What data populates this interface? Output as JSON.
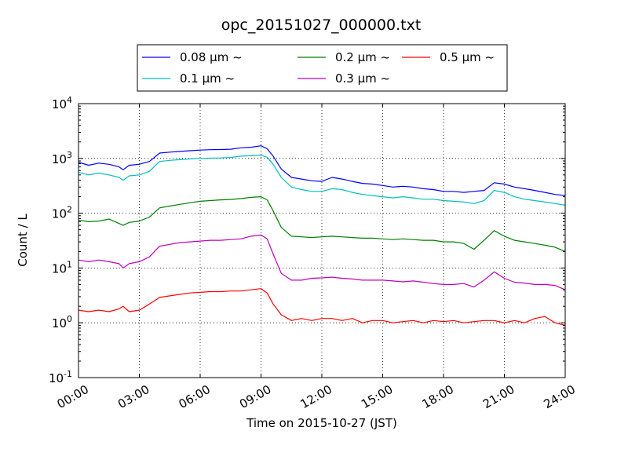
{
  "chart_data": {
    "type": "line",
    "title": "opc_20151027_000000.txt",
    "xlabel": "Time on 2015-10-27 (JST)",
    "ylabel": "Count / L",
    "x_unit": "hours",
    "xlim": [
      0,
      24
    ],
    "y_scale": "log",
    "ylim": [
      0.1,
      10000
    ],
    "grid": "dotted",
    "legend_position": "above plot, centered, 3 columns",
    "x_ticks": [
      {
        "value": 0,
        "label": "00:00"
      },
      {
        "value": 3,
        "label": "03:00"
      },
      {
        "value": 6,
        "label": "06:00"
      },
      {
        "value": 9,
        "label": "09:00"
      },
      {
        "value": 12,
        "label": "12:00"
      },
      {
        "value": 15,
        "label": "15:00"
      },
      {
        "value": 18,
        "label": "18:00"
      },
      {
        "value": 21,
        "label": "21:00"
      },
      {
        "value": 24,
        "label": "24:00"
      }
    ],
    "y_ticks": [
      {
        "value": 0.1,
        "base": "10",
        "exp": "-1"
      },
      {
        "value": 1,
        "base": "10",
        "exp": "0"
      },
      {
        "value": 10,
        "base": "10",
        "exp": "1"
      },
      {
        "value": 100,
        "base": "10",
        "exp": "2"
      },
      {
        "value": 1000,
        "base": "10",
        "exp": "3"
      },
      {
        "value": 10000,
        "base": "10",
        "exp": "4"
      }
    ],
    "series": [
      {
        "name": "0.08 μm ~",
        "color": "#0000ff",
        "x": [
          0,
          0.5,
          1,
          1.5,
          2,
          2.2,
          2.5,
          3,
          3.5,
          4,
          4.5,
          5,
          5.5,
          6,
          6.5,
          7,
          7.5,
          8,
          8.5,
          9,
          9.3,
          9.6,
          10,
          10.5,
          11,
          11.5,
          12,
          12.5,
          13,
          13.5,
          14,
          14.5,
          15,
          15.5,
          16,
          16.5,
          17,
          17.5,
          18,
          18.5,
          19,
          19.5,
          20,
          20.5,
          21,
          21.5,
          22,
          22.5,
          23,
          23.5,
          24
        ],
        "y": [
          850,
          750,
          820,
          780,
          700,
          620,
          750,
          780,
          880,
          1250,
          1300,
          1340,
          1380,
          1420,
          1440,
          1450,
          1470,
          1560,
          1600,
          1700,
          1500,
          1100,
          640,
          450,
          420,
          390,
          380,
          450,
          420,
          380,
          350,
          340,
          320,
          300,
          310,
          300,
          280,
          270,
          250,
          250,
          240,
          250,
          260,
          360,
          340,
          300,
          280,
          260,
          240,
          220,
          210
        ]
      },
      {
        "name": "0.1 μm ~",
        "color": "#00bfbf",
        "x": [
          0,
          0.5,
          1,
          1.5,
          2,
          2.2,
          2.5,
          3,
          3.5,
          4,
          4.5,
          5,
          5.5,
          6,
          6.5,
          7,
          7.5,
          8,
          8.5,
          9,
          9.3,
          9.6,
          10,
          10.5,
          11,
          11.5,
          12,
          12.5,
          13,
          13.5,
          14,
          14.5,
          15,
          15.5,
          16,
          16.5,
          17,
          17.5,
          18,
          18.5,
          19,
          19.5,
          20,
          20.5,
          21,
          21.5,
          22,
          22.5,
          23,
          23.5,
          24
        ],
        "y": [
          560,
          500,
          540,
          500,
          450,
          400,
          480,
          500,
          580,
          880,
          920,
          950,
          980,
          1000,
          1010,
          1020,
          1040,
          1100,
          1120,
          1150,
          1050,
          780,
          450,
          300,
          270,
          250,
          250,
          280,
          270,
          240,
          220,
          210,
          200,
          190,
          200,
          190,
          180,
          180,
          170,
          165,
          160,
          150,
          170,
          260,
          240,
          200,
          180,
          170,
          160,
          150,
          140
        ]
      },
      {
        "name": "0.2 μm ~",
        "color": "#008000",
        "x": [
          0,
          0.5,
          1,
          1.5,
          2,
          2.2,
          2.5,
          3,
          3.5,
          4,
          4.5,
          5,
          5.5,
          6,
          6.5,
          7,
          7.5,
          8,
          8.5,
          9,
          9.3,
          9.6,
          10,
          10.5,
          11,
          11.5,
          12,
          12.5,
          13,
          13.5,
          14,
          14.5,
          15,
          15.5,
          16,
          16.5,
          17,
          17.5,
          18,
          18.5,
          19,
          19.5,
          20,
          20.5,
          21,
          21.5,
          22,
          22.5,
          23,
          23.5,
          24
        ],
        "y": [
          75,
          70,
          72,
          78,
          65,
          60,
          68,
          72,
          85,
          125,
          135,
          145,
          155,
          165,
          170,
          175,
          178,
          185,
          195,
          200,
          175,
          110,
          55,
          38,
          37,
          36,
          37,
          38,
          37,
          36,
          35,
          35,
          34,
          33,
          34,
          33,
          32,
          32,
          30,
          30,
          28,
          22,
          32,
          48,
          38,
          32,
          30,
          28,
          26,
          24,
          20
        ]
      },
      {
        "name": "0.3 μm ~",
        "color": "#bf00bf",
        "x": [
          0,
          0.5,
          1,
          1.5,
          2,
          2.2,
          2.5,
          3,
          3.5,
          4,
          4.5,
          5,
          5.5,
          6,
          6.5,
          7,
          7.5,
          8,
          8.5,
          9,
          9.3,
          9.6,
          10,
          10.5,
          11,
          11.5,
          12,
          12.5,
          13,
          13.5,
          14,
          14.5,
          15,
          15.5,
          16,
          16.5,
          17,
          17.5,
          18,
          18.5,
          19,
          19.5,
          20,
          20.5,
          21,
          21.5,
          22,
          22.5,
          23,
          23.5,
          24
        ],
        "y": [
          14,
          13,
          14,
          13,
          12,
          10,
          12,
          13,
          16,
          25,
          27,
          29,
          30,
          31,
          32,
          32,
          33,
          34,
          38,
          40,
          34,
          18,
          8,
          6,
          6,
          6.5,
          6.6,
          6.8,
          6.5,
          6.3,
          6,
          6,
          6,
          5.8,
          5.6,
          5.8,
          5.5,
          5.2,
          5,
          5,
          5.2,
          4.5,
          6,
          8.5,
          6.5,
          5.5,
          5.3,
          5,
          5,
          4.8,
          4
        ]
      },
      {
        "name": "0.5 μm ~",
        "color": "#ff0000",
        "x": [
          0,
          0.5,
          1,
          1.5,
          2,
          2.2,
          2.5,
          3,
          3.5,
          4,
          4.5,
          5,
          5.5,
          6,
          6.5,
          7,
          7.5,
          8,
          8.5,
          9,
          9.3,
          9.6,
          10,
          10.5,
          11,
          11.5,
          12,
          12.5,
          13,
          13.5,
          14,
          14.5,
          15,
          15.5,
          16,
          16.5,
          17,
          17.5,
          18,
          18.5,
          19,
          19.5,
          20,
          20.5,
          21,
          21.5,
          22,
          22.5,
          23,
          23.5,
          24
        ],
        "y": [
          1.7,
          1.6,
          1.7,
          1.6,
          1.8,
          2.0,
          1.6,
          1.7,
          2.2,
          2.9,
          3.1,
          3.3,
          3.5,
          3.6,
          3.7,
          3.7,
          3.8,
          3.8,
          4.0,
          4.2,
          3.5,
          2.2,
          1.4,
          1.1,
          1.2,
          1.1,
          1.2,
          1.2,
          1.1,
          1.2,
          1.0,
          1.1,
          1.1,
          1.0,
          1.05,
          1.1,
          1.0,
          1.1,
          1.05,
          1.1,
          1.0,
          1.05,
          1.1,
          1.1,
          1.0,
          1.1,
          1.0,
          1.2,
          1.3,
          1.0,
          0.9
        ]
      }
    ]
  }
}
